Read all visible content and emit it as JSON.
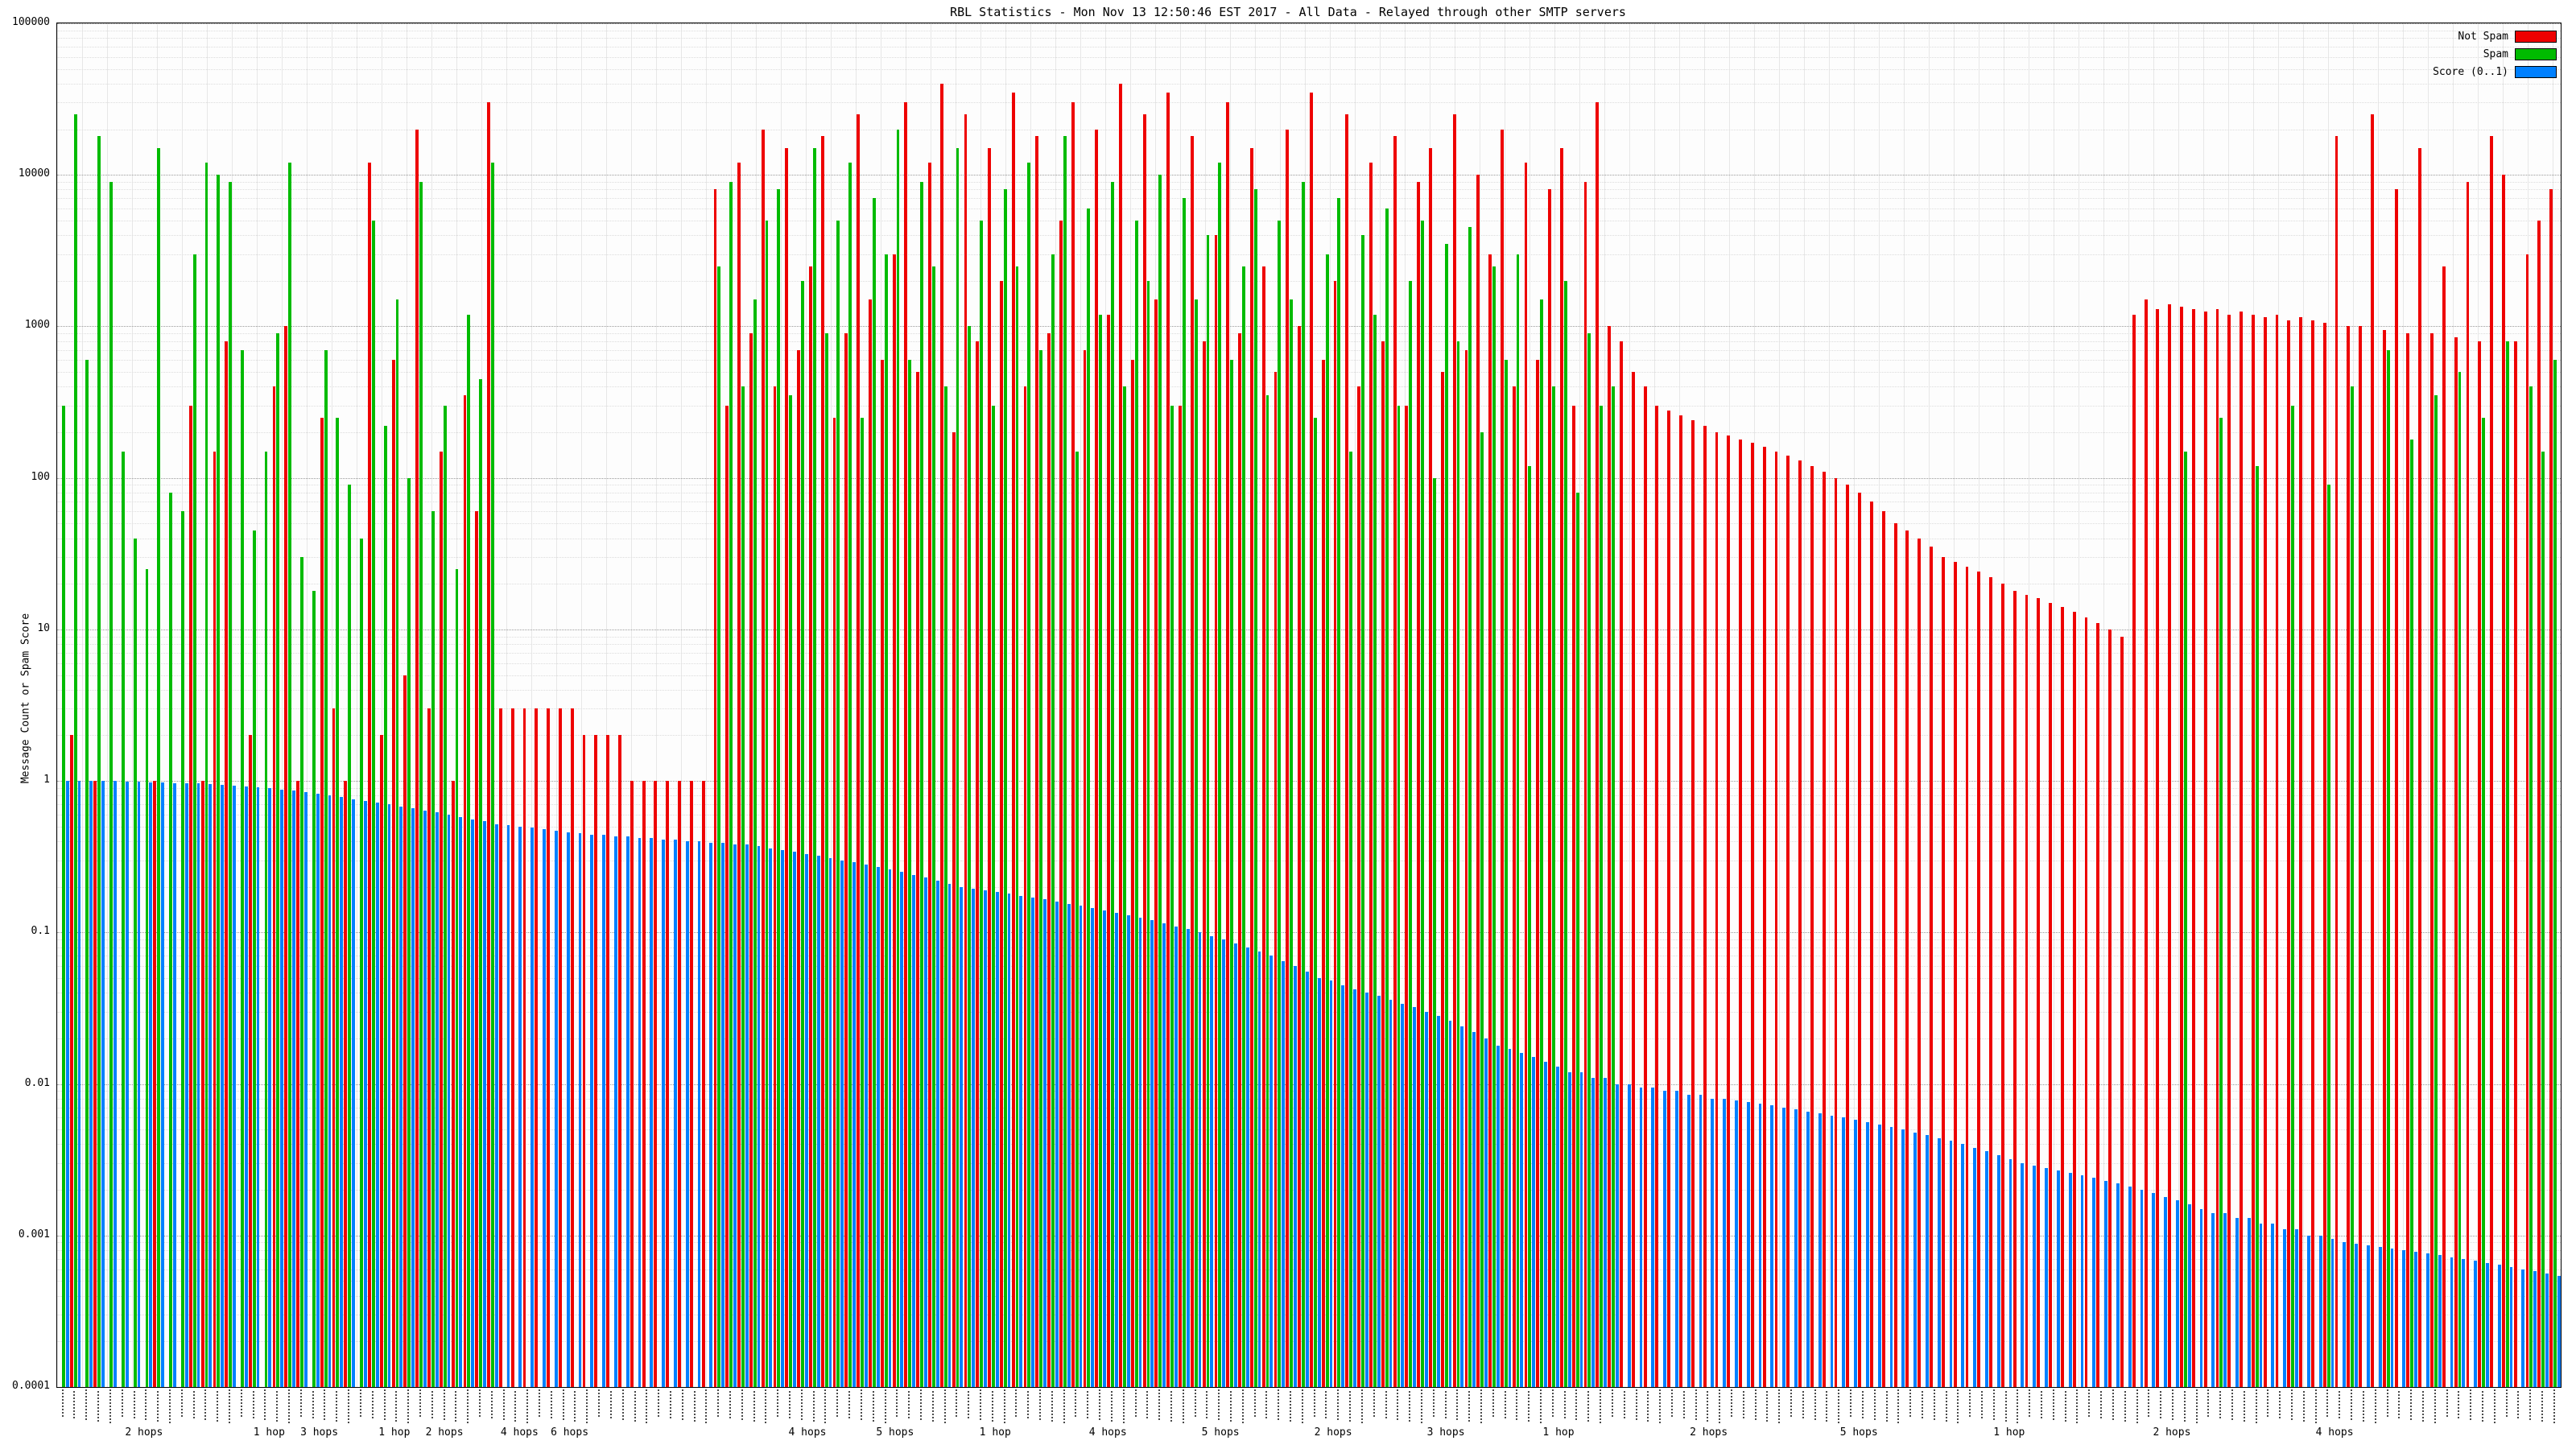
{
  "chart_data": {
    "type": "bar",
    "title": "RBL Statistics - Mon Nov 13 12:50:46 EST 2017 - All Data - Relayed through other SMTP servers",
    "ylabel": "Message Count or Spam Score",
    "yscale": "log",
    "ylim": [
      0.0001,
      100000
    ],
    "grid": true,
    "legend_position": "top-right",
    "yticks": [
      {
        "label": "100000",
        "value": 100000
      },
      {
        "label": "10000",
        "value": 10000
      },
      {
        "label": "1000",
        "value": 1000
      },
      {
        "label": "100",
        "value": 100
      },
      {
        "label": "10",
        "value": 10
      },
      {
        "label": "1",
        "value": 1
      },
      {
        "label": "0.1",
        "value": 0.1
      },
      {
        "label": "0.01",
        "value": 0.01
      },
      {
        "label": "0.001",
        "value": 0.001
      },
      {
        "label": "0.0001",
        "value": 0.0001
      }
    ],
    "x_axis_note": "one rotated RBL-test label per bar group (illegible at this resolution)",
    "x_group_labels": [
      {
        "label": "2 hops",
        "pos": 0.035
      },
      {
        "label": "1 hop",
        "pos": 0.085
      },
      {
        "label": "3 hops",
        "pos": 0.105
      },
      {
        "label": "1 hop",
        "pos": 0.135
      },
      {
        "label": "2 hops",
        "pos": 0.155
      },
      {
        "label": "4 hops",
        "pos": 0.185
      },
      {
        "label": "6 hops",
        "pos": 0.205
      },
      {
        "label": "4 hops",
        "pos": 0.3
      },
      {
        "label": "5 hops",
        "pos": 0.335
      },
      {
        "label": "1 hop",
        "pos": 0.375
      },
      {
        "label": "4 hops",
        "pos": 0.42
      },
      {
        "label": "5 hops",
        "pos": 0.465
      },
      {
        "label": "2 hops",
        "pos": 0.51
      },
      {
        "label": "3 hops",
        "pos": 0.555
      },
      {
        "label": "1 hop",
        "pos": 0.6
      },
      {
        "label": "2 hops",
        "pos": 0.66
      },
      {
        "label": "5 hops",
        "pos": 0.72
      },
      {
        "label": "1 hop",
        "pos": 0.78
      },
      {
        "label": "2 hops",
        "pos": 0.845
      },
      {
        "label": "4 hops",
        "pos": 0.91
      }
    ],
    "series": [
      {
        "name": "Not Spam",
        "color": "#ee0000",
        "values": [
          0,
          2,
          0,
          1,
          0,
          0,
          0,
          0,
          1,
          0,
          0,
          300,
          1,
          150,
          800,
          0,
          2,
          0,
          400,
          1000,
          1,
          0,
          250,
          3,
          1,
          0,
          12000,
          2,
          600,
          5,
          20000,
          3,
          150,
          1,
          350,
          60,
          30000,
          3,
          3,
          3,
          3,
          3,
          3,
          3,
          2,
          2,
          2,
          2,
          1,
          1,
          1,
          1,
          1,
          1,
          1,
          8000,
          300,
          12000,
          900,
          20000,
          400,
          15000,
          700,
          2500,
          18000,
          250,
          900,
          25000,
          1500,
          600,
          3000,
          30000,
          500,
          12000,
          40000,
          200,
          25000,
          800,
          15000,
          2000,
          35000,
          400,
          18000,
          900,
          5000,
          30000,
          700,
          20000,
          1200,
          40000,
          600,
          25000,
          1500,
          35000,
          300,
          18000,
          800,
          4000,
          30000,
          900,
          15000,
          2500,
          500,
          20000,
          1000,
          35000,
          600,
          2000,
          25000,
          400,
          12000,
          800,
          18000,
          300,
          9000,
          15000,
          500,
          25000,
          700,
          10000,
          3000,
          20000,
          400,
          12000,
          600,
          8000,
          15000,
          300,
          9000,
          30000,
          1000,
          800,
          500,
          400,
          300,
          280,
          260,
          240,
          220,
          200,
          190,
          180,
          170,
          160,
          150,
          140,
          130,
          120,
          110,
          100,
          90,
          80,
          70,
          60,
          50,
          45,
          40,
          35,
          30,
          28,
          26,
          24,
          22,
          20,
          18,
          17,
          16,
          15,
          14,
          13,
          12,
          11,
          10,
          9,
          1200,
          1500,
          1300,
          1400,
          1350,
          1300,
          1250,
          1300,
          1200,
          1250,
          1200,
          1150,
          1200,
          1100,
          1150,
          1100,
          1050,
          18000,
          1000,
          1000,
          25000,
          950,
          8000,
          900,
          15000,
          900,
          2500,
          850,
          9000,
          800,
          18000,
          10000,
          800,
          3000,
          5000,
          8000
        ]
      },
      {
        "name": "Spam",
        "color": "#00bb00",
        "values": [
          300,
          25000,
          600,
          18000,
          9000,
          150,
          40,
          25,
          15000,
          80,
          60,
          3000,
          12000,
          10000,
          9000,
          700,
          45,
          150,
          900,
          12000,
          30,
          18,
          700,
          250,
          90,
          40,
          5000,
          220,
          1500,
          100,
          9000,
          60,
          300,
          25,
          1200,
          450,
          12000,
          0,
          0,
          0,
          0,
          0,
          0,
          0,
          0,
          0,
          0,
          0,
          0,
          0,
          0,
          0,
          0,
          0,
          0,
          2500,
          9000,
          400,
          1500,
          5000,
          8000,
          350,
          2000,
          15000,
          900,
          5000,
          12000,
          250,
          7000,
          3000,
          20000,
          600,
          9000,
          2500,
          400,
          15000,
          1000,
          5000,
          300,
          8000,
          2500,
          12000,
          700,
          3000,
          18000,
          150,
          6000,
          1200,
          9000,
          400,
          5000,
          2000,
          10000,
          300,
          7000,
          1500,
          4000,
          12000,
          600,
          2500,
          8000,
          350,
          5000,
          1500,
          9000,
          250,
          3000,
          7000,
          150,
          4000,
          1200,
          6000,
          300,
          2000,
          5000,
          100,
          3500,
          800,
          4500,
          200,
          2500,
          600,
          3000,
          120,
          1500,
          400,
          2000,
          80,
          900,
          300,
          400,
          0,
          0,
          0,
          0,
          0,
          0,
          0,
          0,
          0,
          0,
          0,
          0,
          0,
          0,
          0,
          0,
          0,
          0,
          0,
          0,
          0,
          0,
          0,
          0,
          0,
          0,
          0,
          0,
          0,
          0,
          0,
          0,
          0,
          0,
          0,
          0,
          0,
          0,
          0,
          0,
          0,
          0,
          0,
          0,
          0,
          0,
          0,
          150,
          0,
          0,
          250,
          0,
          0,
          120,
          0,
          0,
          300,
          0,
          0,
          90,
          0,
          400,
          0,
          0,
          700,
          0,
          180,
          0,
          350,
          0,
          500,
          0,
          250,
          0,
          800,
          0,
          400,
          150,
          600
        ]
      },
      {
        "name": "Score (0..1)",
        "color": "#0080ff",
        "values": [
          1.0,
          1.0,
          1.0,
          1.0,
          1.0,
          0.99,
          0.99,
          0.98,
          0.98,
          0.97,
          0.97,
          0.96,
          0.95,
          0.94,
          0.93,
          0.92,
          0.91,
          0.9,
          0.88,
          0.86,
          0.84,
          0.82,
          0.8,
          0.78,
          0.76,
          0.74,
          0.72,
          0.7,
          0.68,
          0.66,
          0.64,
          0.62,
          0.6,
          0.58,
          0.56,
          0.54,
          0.52,
          0.51,
          0.5,
          0.49,
          0.48,
          0.47,
          0.46,
          0.45,
          0.44,
          0.44,
          0.43,
          0.43,
          0.42,
          0.42,
          0.41,
          0.41,
          0.4,
          0.4,
          0.39,
          0.39,
          0.38,
          0.38,
          0.37,
          0.36,
          0.35,
          0.34,
          0.33,
          0.32,
          0.31,
          0.3,
          0.29,
          0.28,
          0.27,
          0.26,
          0.25,
          0.24,
          0.23,
          0.22,
          0.21,
          0.2,
          0.195,
          0.19,
          0.185,
          0.18,
          0.175,
          0.17,
          0.165,
          0.16,
          0.155,
          0.15,
          0.145,
          0.14,
          0.135,
          0.13,
          0.125,
          0.12,
          0.115,
          0.11,
          0.105,
          0.1,
          0.095,
          0.09,
          0.085,
          0.08,
          0.075,
          0.07,
          0.065,
          0.06,
          0.055,
          0.05,
          0.048,
          0.045,
          0.042,
          0.04,
          0.038,
          0.036,
          0.034,
          0.032,
          0.03,
          0.028,
          0.026,
          0.024,
          0.022,
          0.02,
          0.018,
          0.017,
          0.016,
          0.015,
          0.014,
          0.013,
          0.012,
          0.012,
          0.011,
          0.011,
          0.01,
          0.01,
          0.0095,
          0.0095,
          0.009,
          0.009,
          0.0085,
          0.0085,
          0.008,
          0.008,
          0.0078,
          0.0076,
          0.0074,
          0.0072,
          0.007,
          0.0068,
          0.0066,
          0.0064,
          0.0062,
          0.006,
          0.0058,
          0.0056,
          0.0054,
          0.0052,
          0.005,
          0.0048,
          0.0046,
          0.0044,
          0.0042,
          0.004,
          0.0038,
          0.0036,
          0.0034,
          0.0032,
          0.003,
          0.0029,
          0.0028,
          0.0027,
          0.0026,
          0.0025,
          0.0024,
          0.0023,
          0.0022,
          0.0021,
          0.002,
          0.0019,
          0.0018,
          0.0017,
          0.0016,
          0.0015,
          0.0014,
          0.0014,
          0.0013,
          0.0013,
          0.0012,
          0.0012,
          0.0011,
          0.0011,
          0.001,
          0.001,
          0.00095,
          0.0009,
          0.00088,
          0.00086,
          0.00084,
          0.00082,
          0.0008,
          0.00078,
          0.00076,
          0.00074,
          0.00072,
          0.0007,
          0.00068,
          0.00066,
          0.00064,
          0.00062,
          0.0006,
          0.00058,
          0.00056,
          0.00054
        ]
      }
    ]
  }
}
